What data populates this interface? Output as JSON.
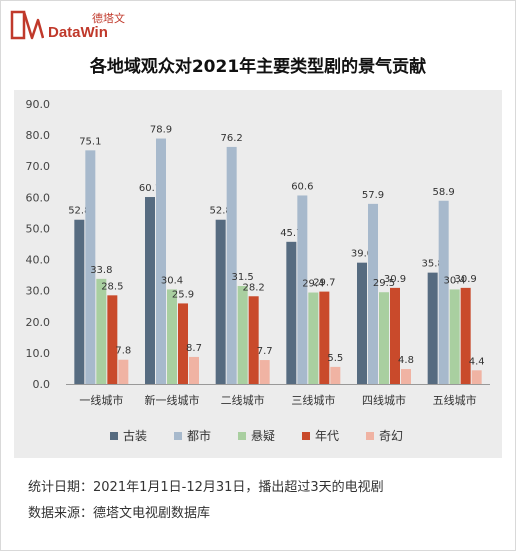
{
  "brand": {
    "cn_name": "德塔文",
    "en_name": "DataWin",
    "icon": "datawin-logo-icon",
    "color": "#c0392b"
  },
  "chart_data": {
    "type": "bar",
    "title": "各地域观众对2021年主要类型剧的景气贡献",
    "categories": [
      "一线城市",
      "新一线城市",
      "二线城市",
      "三线城市",
      "四线城市",
      "五线城市"
    ],
    "series": [
      {
        "name": "古装",
        "color": "#566b80",
        "values": [
          52.8,
          60.1,
          52.8,
          45.7,
          39.0,
          35.8
        ]
      },
      {
        "name": "都市",
        "color": "#a7b9cc",
        "values": [
          75.1,
          78.9,
          76.2,
          60.6,
          57.9,
          58.9
        ]
      },
      {
        "name": "悬疑",
        "color": "#a9cfa0",
        "values": [
          33.8,
          30.4,
          31.5,
          29.4,
          29.5,
          30.4
        ]
      },
      {
        "name": "年代",
        "color": "#c94a2b",
        "values": [
          28.5,
          25.9,
          28.2,
          29.7,
          30.9,
          30.9
        ]
      },
      {
        "name": "奇幻",
        "color": "#f0b3a3",
        "values": [
          7.8,
          8.7,
          7.7,
          5.5,
          4.8,
          4.4
        ]
      }
    ],
    "ylim": [
      0,
      90
    ],
    "yticks": [
      "0.0",
      "10.0",
      "20.0",
      "30.0",
      "40.0",
      "50.0",
      "60.0",
      "70.0",
      "80.0",
      "90.0"
    ],
    "xlabel": "",
    "ylabel": "",
    "grid": false,
    "legend_position": "bottom"
  },
  "footer": {
    "stat_date": "统计日期：2021年1月1日-12月31日，播出超过3天的电视剧",
    "source": "数据来源：德塔文电视剧数据库"
  }
}
